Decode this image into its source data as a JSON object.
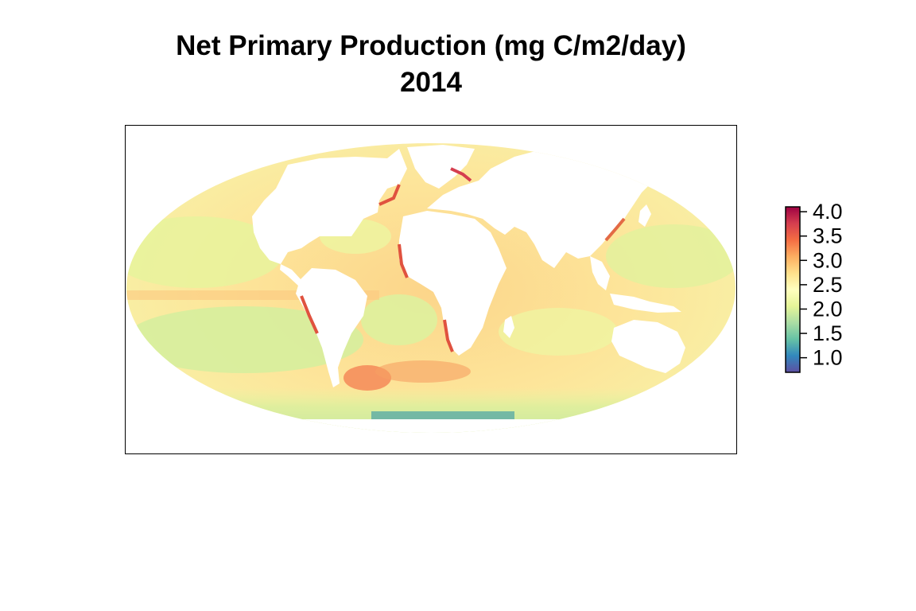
{
  "title": {
    "line1": "Net Primary Production (mg C/m2/day)",
    "line2": "2014"
  },
  "legend": {
    "min": 0.7,
    "max": 4.1,
    "ticks": [
      "4.0",
      "3.5",
      "3.0",
      "2.5",
      "2.0",
      "1.5",
      "1.0"
    ],
    "tick_values": [
      4.0,
      3.5,
      3.0,
      2.5,
      2.0,
      1.5,
      1.0
    ],
    "palette": [
      "#5e4fa2",
      "#3288bd",
      "#66c2a5",
      "#abdda4",
      "#e6f598",
      "#ffffbf",
      "#fee08b",
      "#fdae61",
      "#f46d43",
      "#d53e4f",
      "#9e0142"
    ]
  },
  "map": {
    "projection": "mollweide",
    "land_color": "#ffffff",
    "frame_color": "#000000"
  }
}
